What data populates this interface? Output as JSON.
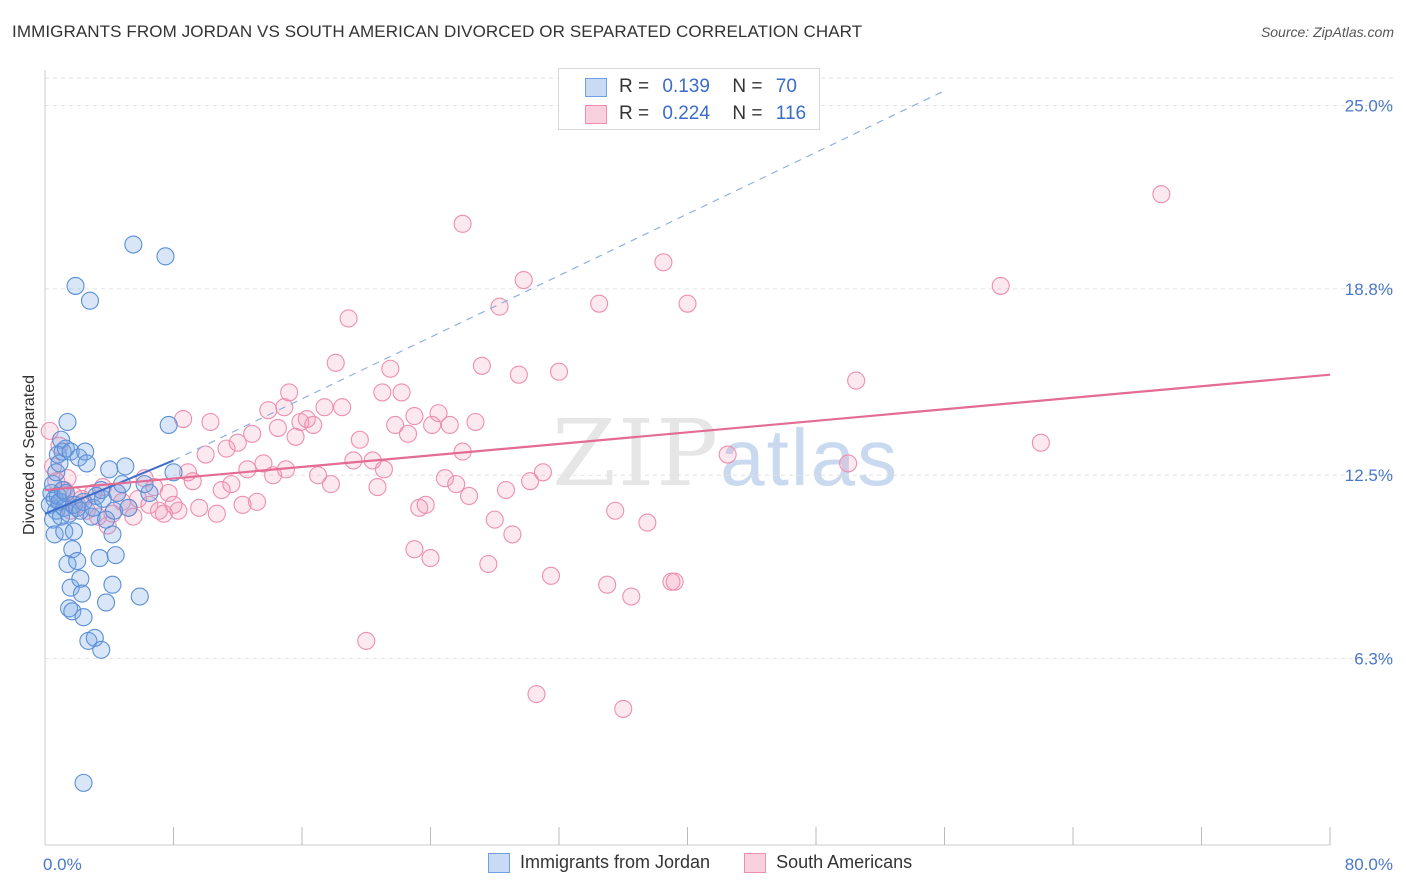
{
  "title": "IMMIGRANTS FROM JORDAN VS SOUTH AMERICAN DIVORCED OR SEPARATED CORRELATION CHART",
  "source": "Source: ZipAtlas.com",
  "watermark": {
    "zip": "ZIP",
    "atlas": "atlas"
  },
  "legend": {
    "r_label": "R =",
    "n_label": "N =",
    "rows": [
      {
        "name": "Immigrants from Jordan",
        "r": "0.139",
        "n": "70",
        "color": "#6fa0e0"
      },
      {
        "name": "South Americans",
        "r": "0.224",
        "n": "116",
        "color": "#ee8fae"
      }
    ]
  },
  "chart_data": {
    "type": "scatter",
    "ylabel": "Divorced or Separated",
    "xlabel": "",
    "xlim": [
      0,
      80
    ],
    "ylim": [
      0,
      26.2
    ],
    "x_tick_labels": [
      "0.0%",
      "80.0%"
    ],
    "y_ticks": [
      6.3,
      12.5,
      18.8,
      25.0
    ],
    "y_tick_labels": [
      "6.3%",
      "12.5%",
      "18.8%",
      "25.0%"
    ],
    "grid": true,
    "series": [
      {
        "name": "Immigrants from Jordan",
        "color": "#5b8fd6",
        "trend": {
          "x": [
            0,
            8
          ],
          "y": [
            11.2,
            13.0
          ],
          "dashed_extension": {
            "x": [
              8,
              56
            ],
            "y": [
              13.0,
              25.5
            ]
          }
        },
        "points": [
          [
            0.3,
            11.5
          ],
          [
            0.4,
            11.9
          ],
          [
            0.5,
            12.2
          ],
          [
            0.5,
            11.0
          ],
          [
            0.6,
            11.7
          ],
          [
            0.6,
            10.5
          ],
          [
            0.7,
            12.6
          ],
          [
            0.7,
            11.3
          ],
          [
            0.8,
            13.2
          ],
          [
            0.8,
            11.8
          ],
          [
            0.9,
            12.9
          ],
          [
            0.9,
            11.6
          ],
          [
            1.0,
            13.7
          ],
          [
            1.0,
            11.1
          ],
          [
            1.1,
            13.3
          ],
          [
            1.1,
            12.0
          ],
          [
            1.2,
            11.4
          ],
          [
            1.2,
            10.6
          ],
          [
            1.3,
            13.4
          ],
          [
            1.3,
            11.9
          ],
          [
            1.4,
            14.3
          ],
          [
            1.4,
            9.5
          ],
          [
            1.5,
            11.2
          ],
          [
            1.5,
            8.0
          ],
          [
            1.6,
            8.7
          ],
          [
            1.6,
            13.3
          ],
          [
            1.7,
            10.0
          ],
          [
            1.7,
            7.9
          ],
          [
            1.8,
            11.5
          ],
          [
            1.8,
            10.6
          ],
          [
            1.9,
            18.9
          ],
          [
            2.0,
            9.6
          ],
          [
            2.0,
            11.4
          ],
          [
            2.1,
            13.1
          ],
          [
            2.2,
            9.0
          ],
          [
            2.2,
            11.3
          ],
          [
            2.3,
            8.5
          ],
          [
            2.4,
            11.6
          ],
          [
            2.4,
            7.7
          ],
          [
            2.5,
            13.3
          ],
          [
            2.6,
            12.9
          ],
          [
            2.7,
            6.9
          ],
          [
            2.8,
            18.4
          ],
          [
            2.9,
            11.1
          ],
          [
            3.0,
            11.4
          ],
          [
            3.1,
            7.0
          ],
          [
            3.2,
            11.8
          ],
          [
            3.4,
            9.7
          ],
          [
            3.5,
            6.6
          ],
          [
            3.6,
            11.7
          ],
          [
            3.8,
            8.2
          ],
          [
            4.0,
            12.7
          ],
          [
            4.2,
            10.5
          ],
          [
            4.3,
            11.3
          ],
          [
            4.5,
            11.9
          ],
          [
            3.5,
            12.0
          ],
          [
            3.8,
            11.0
          ],
          [
            4.2,
            8.8
          ],
          [
            4.4,
            9.8
          ],
          [
            4.8,
            12.2
          ],
          [
            5.0,
            12.8
          ],
          [
            5.2,
            11.4
          ],
          [
            5.5,
            20.3
          ],
          [
            5.9,
            8.4
          ],
          [
            6.5,
            11.9
          ],
          [
            6.2,
            12.2
          ],
          [
            7.5,
            19.9
          ],
          [
            8.0,
            12.6
          ],
          [
            7.7,
            14.2
          ],
          [
            2.4,
            2.1
          ]
        ]
      },
      {
        "name": "South Americans",
        "color": "#ee8fae",
        "trend": {
          "x": [
            0,
            80
          ],
          "y": [
            12.0,
            15.9
          ]
        },
        "points": [
          [
            0.3,
            14.0
          ],
          [
            0.5,
            12.8
          ],
          [
            0.7,
            12.3
          ],
          [
            0.9,
            13.5
          ],
          [
            1.0,
            11.6
          ],
          [
            1.2,
            12.0
          ],
          [
            1.4,
            12.4
          ],
          [
            1.6,
            11.3
          ],
          [
            1.8,
            11.8
          ],
          [
            2.0,
            11.5
          ],
          [
            2.3,
            11.7
          ],
          [
            2.6,
            11.3
          ],
          [
            3.0,
            11.9
          ],
          [
            3.3,
            11.1
          ],
          [
            3.6,
            12.1
          ],
          [
            3.9,
            10.8
          ],
          [
            4.2,
            11.2
          ],
          [
            4.5,
            11.9
          ],
          [
            4.8,
            11.6
          ],
          [
            5.2,
            11.4
          ],
          [
            5.5,
            11.1
          ],
          [
            5.8,
            11.7
          ],
          [
            6.2,
            12.4
          ],
          [
            6.5,
            11.5
          ],
          [
            6.8,
            12.1
          ],
          [
            7.1,
            11.3
          ],
          [
            7.4,
            11.2
          ],
          [
            7.7,
            11.9
          ],
          [
            8.0,
            11.5
          ],
          [
            8.3,
            11.3
          ],
          [
            8.6,
            14.4
          ],
          [
            8.9,
            12.6
          ],
          [
            9.2,
            12.3
          ],
          [
            9.6,
            11.4
          ],
          [
            10.0,
            13.2
          ],
          [
            10.3,
            14.3
          ],
          [
            10.7,
            11.2
          ],
          [
            11.0,
            12.0
          ],
          [
            11.3,
            13.4
          ],
          [
            11.6,
            12.2
          ],
          [
            12.0,
            13.6
          ],
          [
            12.3,
            11.5
          ],
          [
            12.6,
            12.7
          ],
          [
            12.9,
            13.9
          ],
          [
            13.2,
            11.6
          ],
          [
            13.6,
            12.9
          ],
          [
            13.9,
            14.7
          ],
          [
            14.2,
            12.5
          ],
          [
            14.5,
            14.1
          ],
          [
            14.9,
            14.8
          ],
          [
            15.2,
            15.3
          ],
          [
            15.6,
            13.8
          ],
          [
            15.9,
            14.3
          ],
          [
            16.3,
            14.4
          ],
          [
            16.7,
            14.2
          ],
          [
            17.0,
            12.5
          ],
          [
            17.4,
            14.8
          ],
          [
            17.8,
            12.2
          ],
          [
            18.1,
            16.3
          ],
          [
            18.5,
            14.8
          ],
          [
            18.9,
            17.8
          ],
          [
            19.2,
            13.0
          ],
          [
            19.6,
            13.7
          ],
          [
            20.0,
            6.9
          ],
          [
            20.4,
            13.0
          ],
          [
            20.7,
            12.1
          ],
          [
            21.1,
            12.7
          ],
          [
            21.5,
            16.1
          ],
          [
            21.8,
            14.2
          ],
          [
            22.2,
            15.3
          ],
          [
            22.6,
            13.9
          ],
          [
            23.0,
            14.5
          ],
          [
            23.3,
            11.4
          ],
          [
            23.7,
            11.5
          ],
          [
            24.1,
            14.2
          ],
          [
            24.5,
            14.6
          ],
          [
            24.9,
            12.4
          ],
          [
            25.2,
            14.2
          ],
          [
            25.6,
            12.2
          ],
          [
            26.0,
            13.3
          ],
          [
            26.4,
            11.8
          ],
          [
            26.8,
            14.3
          ],
          [
            27.2,
            16.2
          ],
          [
            27.6,
            9.5
          ],
          [
            28.0,
            11.0
          ],
          [
            28.3,
            18.2
          ],
          [
            28.7,
            12.0
          ],
          [
            29.1,
            10.5
          ],
          [
            29.5,
            15.9
          ],
          [
            29.8,
            19.1
          ],
          [
            30.2,
            12.3
          ],
          [
            30.6,
            5.1
          ],
          [
            31.0,
            12.6
          ],
          [
            31.5,
            9.1
          ],
          [
            32.0,
            16.0
          ],
          [
            34.5,
            18.3
          ],
          [
            35.0,
            8.8
          ],
          [
            35.5,
            11.3
          ],
          [
            36.0,
            4.6
          ],
          [
            36.5,
            8.4
          ],
          [
            37.5,
            10.9
          ],
          [
            38.5,
            19.7
          ],
          [
            39.2,
            8.9
          ],
          [
            40.0,
            18.3
          ],
          [
            42.5,
            13.2
          ],
          [
            50.0,
            12.9
          ],
          [
            50.5,
            15.7
          ],
          [
            59.5,
            18.9
          ],
          [
            62.0,
            13.6
          ],
          [
            69.5,
            22.0
          ],
          [
            26.0,
            21.0
          ],
          [
            21.0,
            15.3
          ],
          [
            39.0,
            8.9
          ],
          [
            23.0,
            10.0
          ],
          [
            15.0,
            12.7
          ],
          [
            24.0,
            9.7
          ]
        ]
      }
    ]
  }
}
